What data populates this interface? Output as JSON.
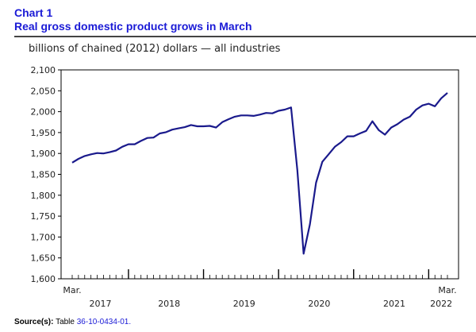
{
  "header": {
    "chart_label": "Chart 1",
    "chart_title": "Real gross domestic product grows in March"
  },
  "units_label": "billions of chained (2012) dollars — all industries",
  "source": {
    "label": "Source(s):",
    "text": "Table",
    "link_text": "36-10-0434-01."
  },
  "colors": {
    "title": "#1a1ad6",
    "line": "#1a1a8c",
    "axis": "#000000"
  },
  "chart_data": {
    "type": "line",
    "title": "Real gross domestic product grows in March",
    "ylabel": "billions of chained (2012) dollars — all industries",
    "ylim": [
      1600,
      2100
    ],
    "yticks": [
      1600,
      1650,
      1700,
      1750,
      1800,
      1850,
      1900,
      1950,
      2000,
      2050,
      2100
    ],
    "ytick_labels": [
      "1,600",
      "1,650",
      "1,700",
      "1,750",
      "1,800",
      "1,850",
      "1,900",
      "1,950",
      "2,000",
      "2,050",
      "2,100"
    ],
    "x_start_label": "Mar.",
    "x_end_label": "Mar.",
    "year_labels": [
      "2017",
      "2018",
      "2019",
      "2020",
      "2021",
      "2022"
    ],
    "grid": false,
    "series": [
      {
        "x": [
          "2017-03",
          "2017-04",
          "2017-05",
          "2017-06",
          "2017-07",
          "2017-08",
          "2017-09",
          "2017-10",
          "2017-11",
          "2017-12",
          "2018-01",
          "2018-02",
          "2018-03",
          "2018-04",
          "2018-05",
          "2018-06",
          "2018-07",
          "2018-08",
          "2018-09",
          "2018-10",
          "2018-11",
          "2018-12",
          "2019-01",
          "2019-02",
          "2019-03",
          "2019-04",
          "2019-05",
          "2019-06",
          "2019-07",
          "2019-08",
          "2019-09",
          "2019-10",
          "2019-11",
          "2019-12",
          "2020-01",
          "2020-02",
          "2020-03",
          "2020-04",
          "2020-05",
          "2020-06",
          "2020-07",
          "2020-08",
          "2020-09",
          "2020-10",
          "2020-11",
          "2020-12",
          "2021-01",
          "2021-02",
          "2021-03",
          "2021-04",
          "2021-05",
          "2021-06",
          "2021-07",
          "2021-08",
          "2021-09",
          "2021-10",
          "2021-11",
          "2021-12",
          "2022-01",
          "2022-02",
          "2022-03"
        ],
        "values": [
          1878,
          1887,
          1894,
          1898,
          1901,
          1900,
          1903,
          1907,
          1916,
          1922,
          1922,
          1930,
          1937,
          1938,
          1948,
          1951,
          1957,
          1960,
          1963,
          1968,
          1965,
          1965,
          1966,
          1962,
          1975,
          1982,
          1988,
          1991,
          1991,
          1990,
          1993,
          1997,
          1996,
          2002,
          2005,
          2010,
          1860,
          1660,
          1730,
          1830,
          1880,
          1898,
          1916,
          1927,
          1941,
          1941,
          1948,
          1954,
          1977,
          1956,
          1945,
          1962,
          1970,
          1981,
          1988,
          2005,
          2015,
          2019,
          2013,
          2032,
          2045
        ]
      }
    ]
  }
}
